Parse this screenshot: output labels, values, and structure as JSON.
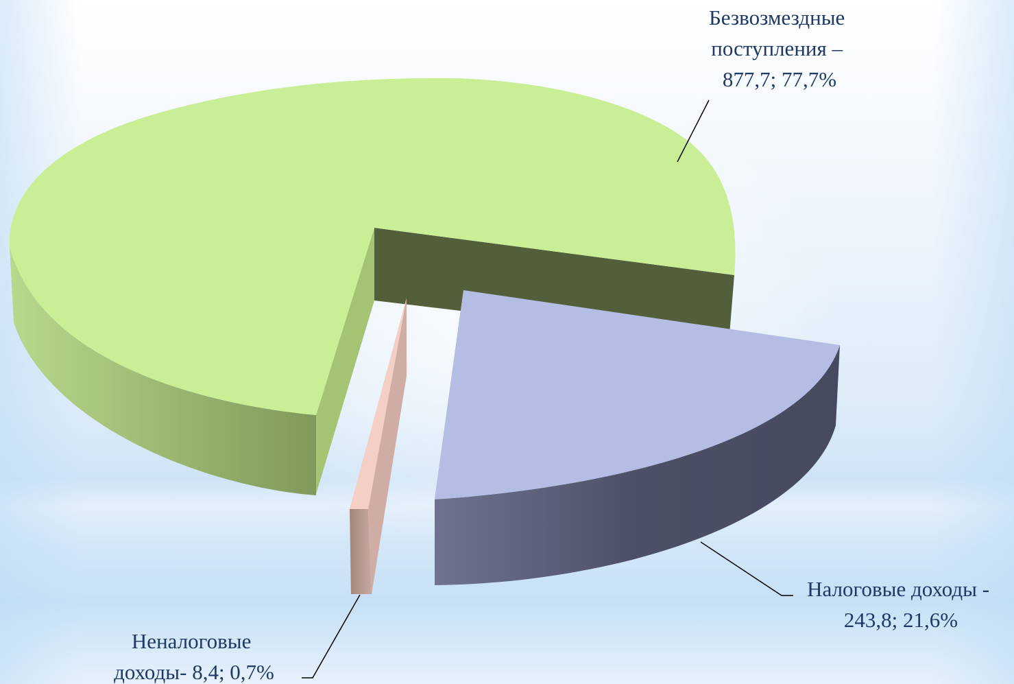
{
  "chart_data": {
    "type": "pie",
    "three_d": true,
    "exploded": true,
    "slices": [
      {
        "name": "Безвозмездные поступления",
        "value": 877.7,
        "percent": 77.7,
        "color_top": "#c9ee95",
        "color_side": "#9fbe6e",
        "color_inner": "#535f3a",
        "label_lines": [
          "Безвозмездные",
          "поступления –",
          "877,7; 77,7%"
        ]
      },
      {
        "name": "Налоговые доходы",
        "value": 243.8,
        "percent": 21.6,
        "color_top": "#b4bde4",
        "color_side": "#4a4e64",
        "color_inner": "#6f7594",
        "label_lines": [
          "Налоговые доходы -",
          "243,8; 21,6%"
        ]
      },
      {
        "name": "Неналоговые доходы",
        "value": 8.4,
        "percent": 0.7,
        "color_top": "#f3cfc5",
        "color_side": "#a3847b",
        "color_inner": "#cfada5",
        "label_lines": [
          "Неналоговые",
          "доходы- 8,4; 0,7%"
        ]
      }
    ],
    "text_color": "#1f3864",
    "leader_color": "#000000"
  }
}
